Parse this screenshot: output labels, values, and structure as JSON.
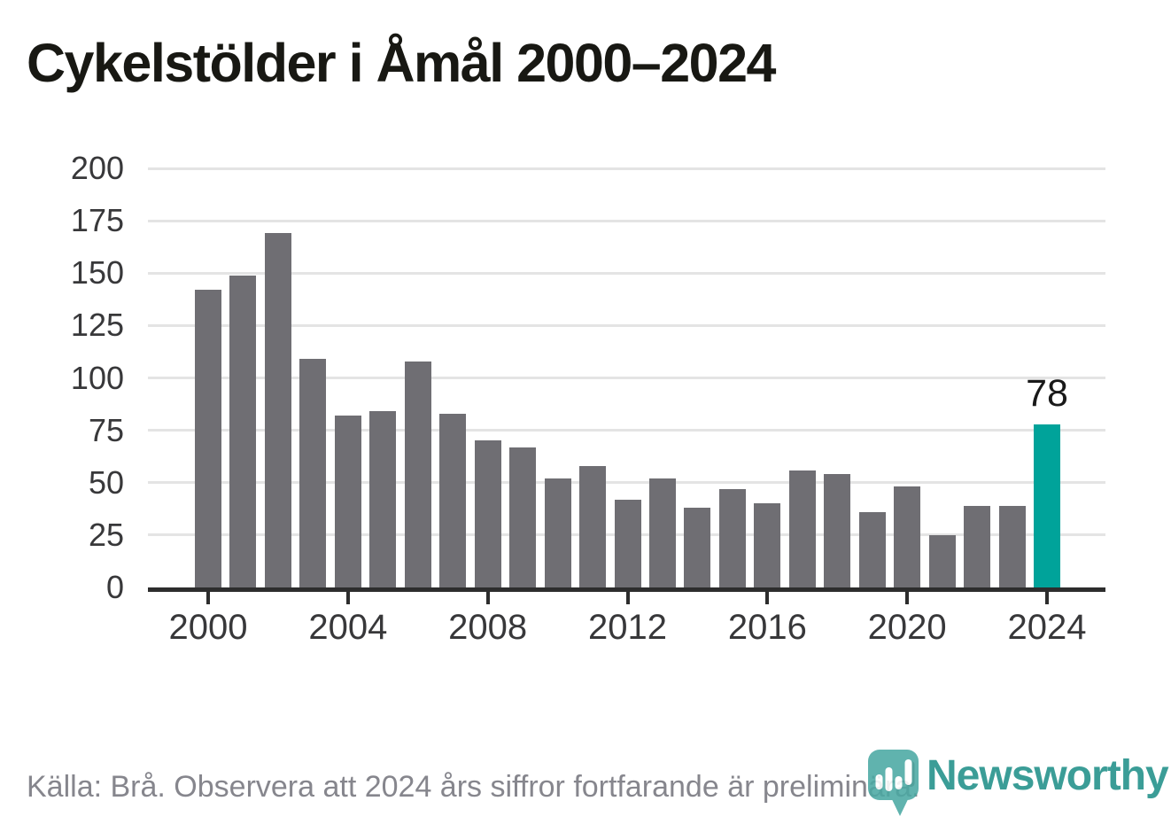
{
  "title": "Cykelstölder i Åmål 2000–2024",
  "chart_data": {
    "type": "bar",
    "title": "Cykelstölder i Åmål 2000–2024",
    "categories": [
      2000,
      2001,
      2002,
      2003,
      2004,
      2005,
      2006,
      2007,
      2008,
      2009,
      2010,
      2011,
      2012,
      2013,
      2014,
      2015,
      2016,
      2017,
      2018,
      2019,
      2020,
      2021,
      2022,
      2023,
      2024
    ],
    "values": [
      142,
      149,
      169,
      109,
      82,
      84,
      108,
      83,
      70,
      67,
      52,
      58,
      42,
      52,
      38,
      47,
      40,
      56,
      54,
      36,
      48,
      25,
      39,
      39,
      78
    ],
    "ylim": [
      0,
      200
    ],
    "y_ticks": [
      0,
      25,
      50,
      75,
      100,
      125,
      150,
      175,
      200
    ],
    "x_tick_labels": [
      "2000",
      "2004",
      "2008",
      "2012",
      "2016",
      "2020",
      "2024"
    ],
    "grid": true,
    "legend": "none",
    "bar_color": "#6f6e73",
    "highlight_index": 24,
    "highlight_color": "#00a39a",
    "annotation": {
      "text": "78",
      "target_year": "2024"
    }
  },
  "footer": {
    "source_note": "Källa: Brå. Observera att 2024 års siffror fortfarande är preliminära."
  },
  "logo": {
    "wordmark": "Newsworthy",
    "icon": "newsworthy-pin-bar-chart-icon",
    "color": "#3b9d97"
  }
}
